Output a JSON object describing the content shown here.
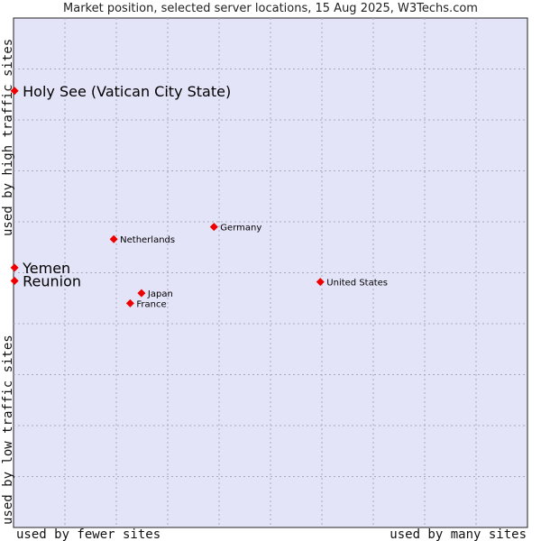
{
  "chart_data": {
    "type": "scatter",
    "title": "Market position, selected server locations, 15 Aug 2025, W3Techs.com",
    "xlabel_left": "used by fewer sites",
    "xlabel_right": "used by many sites",
    "ylabel_bottom": "used by low traffic sites",
    "ylabel_top": "used by high traffic sites",
    "xlim": [
      0,
      10
    ],
    "ylim": [
      0,
      10
    ],
    "grid": true,
    "points": [
      {
        "name": "Holy See (Vatican City State)",
        "x": 0.02,
        "y": 8.57,
        "size": "large"
      },
      {
        "name": "Germany",
        "x": 3.9,
        "y": 5.9,
        "size": "small"
      },
      {
        "name": "Netherlands",
        "x": 1.95,
        "y": 5.66,
        "size": "small"
      },
      {
        "name": "Yemen",
        "x": 0.02,
        "y": 5.1,
        "size": "large"
      },
      {
        "name": "Reunion",
        "x": 0.02,
        "y": 4.84,
        "size": "large"
      },
      {
        "name": "United States",
        "x": 5.97,
        "y": 4.82,
        "size": "small"
      },
      {
        "name": "Japan",
        "x": 2.49,
        "y": 4.6,
        "size": "small"
      },
      {
        "name": "France",
        "x": 2.27,
        "y": 4.4,
        "size": "small"
      }
    ]
  },
  "colors": {
    "plot_bg": "#e4e4f8",
    "grid": "#a8a8c0",
    "frame": "#222222",
    "marker": "#ee0000"
  }
}
